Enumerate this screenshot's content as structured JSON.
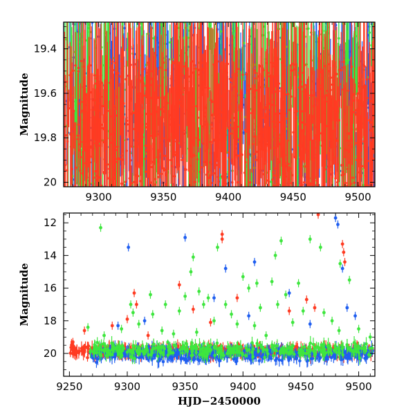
{
  "chart_data": [
    {
      "type": "scatter",
      "panel": "top",
      "title": "",
      "xlabel": "",
      "ylabel": "Magnitude",
      "xlim": [
        9273,
        9513
      ],
      "ylim": [
        20.02,
        19.28
      ],
      "xticks": [
        9300,
        9350,
        9400,
        9450,
        9500
      ],
      "xtick_labels": [
        "9300",
        "9350",
        "9400",
        "9450",
        "9500"
      ],
      "yticks": [
        19.4,
        19.6,
        19.8,
        20.0
      ],
      "ytick_labels": [
        "19.4",
        "19.6",
        "19.8",
        "20"
      ],
      "series": [
        {
          "name": "blue",
          "color": "#1f5ef0",
          "x_range": [
            9273,
            9513
          ],
          "y_range": [
            19.28,
            20.02
          ],
          "count": 450,
          "seed": 11
        },
        {
          "name": "green",
          "color": "#3ee63e",
          "x_range": [
            9273,
            9513
          ],
          "y_range": [
            19.28,
            20.02
          ],
          "count": 420,
          "seed": 23
        },
        {
          "name": "red",
          "color": "#ff3b22",
          "x_range": [
            9273,
            9513
          ],
          "y_range": [
            19.45,
            20.02
          ],
          "count": 900,
          "seed": 37
        }
      ]
    },
    {
      "type": "scatter",
      "panel": "bottom",
      "title": "",
      "xlabel": "HJD−2450000",
      "ylabel": "Magnitude",
      "xlim": [
        9245,
        9514
      ],
      "ylim": [
        21.4,
        11.4
      ],
      "xticks": [
        9250,
        9300,
        9350,
        9400,
        9450,
        9500
      ],
      "xtick_labels": [
        "9250",
        "9300",
        "9350",
        "9400",
        "9450",
        "9500"
      ],
      "yticks": [
        12,
        14,
        16,
        18,
        20
      ],
      "ytick_labels": [
        "12",
        "14",
        "16",
        "18",
        "20"
      ],
      "series": [
        {
          "name": "red",
          "color": "#ff3b22",
          "band": {
            "x_range": [
              9250,
              9512
            ],
            "center": 19.85,
            "spread": 0.45,
            "count": 500,
            "seed": 41
          },
          "points": [
            [
              9306,
              16.3
            ],
            [
              9308,
              17.0
            ],
            [
              9345,
              15.8
            ],
            [
              9382,
              12.7
            ],
            [
              9382,
              13.0
            ],
            [
              9395,
              16.6
            ],
            [
              9357,
              17.3
            ],
            [
              9300,
              17.9
            ],
            [
              9263,
              18.6
            ],
            [
              9465,
              11.5
            ],
            [
              9486,
              13.3
            ],
            [
              9487,
              13.8
            ],
            [
              9488,
              14.4
            ],
            [
              9455,
              16.7
            ],
            [
              9462,
              17.2
            ],
            [
              9440,
              17.4
            ],
            [
              9372,
              18.1
            ],
            [
              9318,
              18.9
            ],
            [
              9253,
              19.3
            ],
            [
              9287,
              18.3
            ]
          ]
        },
        {
          "name": "blue",
          "color": "#1f5ef0",
          "band": {
            "x_range": [
              9268,
              9512
            ],
            "center": 20.05,
            "spread": 0.6,
            "count": 500,
            "seed": 53
          },
          "points": [
            [
              9301,
              13.5
            ],
            [
              9350,
              12.9
            ],
            [
              9385,
              14.8
            ],
            [
              9410,
              14.4
            ],
            [
              9480,
              11.7
            ],
            [
              9482,
              12.1
            ],
            [
              9486,
              14.8
            ],
            [
              9490,
              17.2
            ],
            [
              9497,
              17.7
            ],
            [
              9375,
              16.6
            ],
            [
              9405,
              17.7
            ],
            [
              9440,
              16.3
            ],
            [
              9315,
              18.0
            ],
            [
              9292,
              18.3
            ],
            [
              9458,
              18.2
            ]
          ]
        },
        {
          "name": "green",
          "color": "#3ee63e",
          "band": {
            "x_range": [
              9268,
              9512
            ],
            "center": 19.8,
            "spread": 0.6,
            "count": 350,
            "seed": 67
          },
          "points": [
            [
              9277,
              12.3
            ],
            [
              9357,
              14.1
            ],
            [
              9378,
              13.5
            ],
            [
              9458,
              13.0
            ],
            [
              9467,
              13.5
            ],
            [
              9484,
              14.5
            ],
            [
              9492,
              15.5
            ],
            [
              9303,
              17.0
            ],
            [
              9305,
              17.5
            ],
            [
              9310,
              18.2
            ],
            [
              9320,
              16.4
            ],
            [
              9322,
              17.6
            ],
            [
              9333,
              17.0
            ],
            [
              9345,
              17.4
            ],
            [
              9350,
              16.5
            ],
            [
              9355,
              15.0
            ],
            [
              9362,
              16.2
            ],
            [
              9366,
              17.0
            ],
            [
              9370,
              16.6
            ],
            [
              9375,
              18.0
            ],
            [
              9385,
              17.0
            ],
            [
              9390,
              17.6
            ],
            [
              9395,
              18.2
            ],
            [
              9400,
              15.3
            ],
            [
              9405,
              16.0
            ],
            [
              9412,
              15.7
            ],
            [
              9415,
              17.2
            ],
            [
              9425,
              15.6
            ],
            [
              9428,
              14.0
            ],
            [
              9430,
              17.0
            ],
            [
              9437,
              16.4
            ],
            [
              9443,
              18.1
            ],
            [
              9448,
              15.7
            ],
            [
              9452,
              17.4
            ],
            [
              9470,
              17.5
            ],
            [
              9477,
              18.0
            ],
            [
              9483,
              18.6
            ],
            [
              9266,
              18.4
            ],
            [
              9280,
              18.9
            ],
            [
              9295,
              18.5
            ],
            [
              9330,
              18.6
            ],
            [
              9340,
              18.8
            ],
            [
              9360,
              18.7
            ],
            [
              9410,
              18.3
            ],
            [
              9420,
              18.9
            ],
            [
              9500,
              18.5
            ],
            [
              9510,
              19.0
            ],
            [
              9433,
              13.1
            ]
          ]
        }
      ]
    }
  ]
}
